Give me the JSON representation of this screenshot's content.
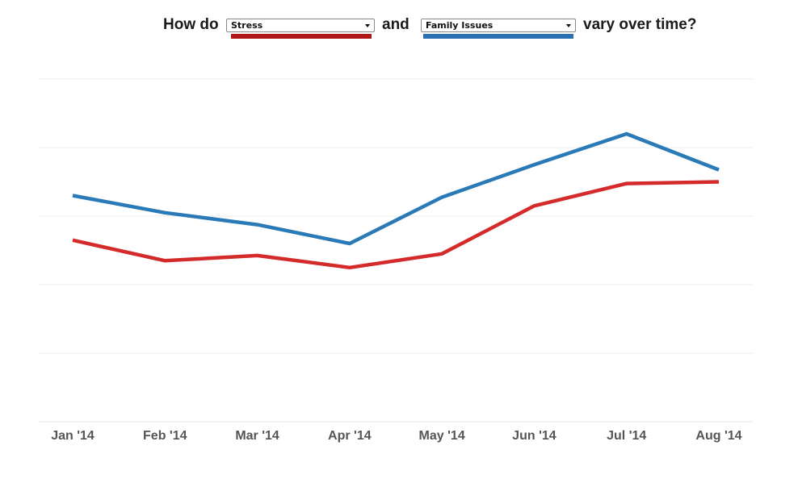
{
  "header": {
    "prefix": "How do",
    "conjunction": "and",
    "suffix": "vary over time?",
    "select_1": {
      "selected": "Stress",
      "color": "#b01818"
    },
    "select_2": {
      "selected": "Family Issues",
      "color": "#2a70b0"
    }
  },
  "chart_data": {
    "type": "line",
    "title": "",
    "xlabel": "",
    "ylabel": "",
    "categories": [
      "Jan '14",
      "Feb '14",
      "Mar '14",
      "Apr '14",
      "May '14",
      "Jun '14",
      "Jul '14",
      "Aug '14"
    ],
    "ylim": [
      0,
      100
    ],
    "grid": true,
    "series": [
      {
        "name": "Family Issues",
        "color": "#2a7ab8",
        "values": [
          66,
          61,
          57.5,
          52,
          65.5,
          75,
          84,
          73.5
        ]
      },
      {
        "name": "Stress",
        "color": "#d42a2a",
        "values": [
          53,
          47,
          48.5,
          45,
          49,
          63,
          69.5,
          70
        ]
      }
    ]
  }
}
